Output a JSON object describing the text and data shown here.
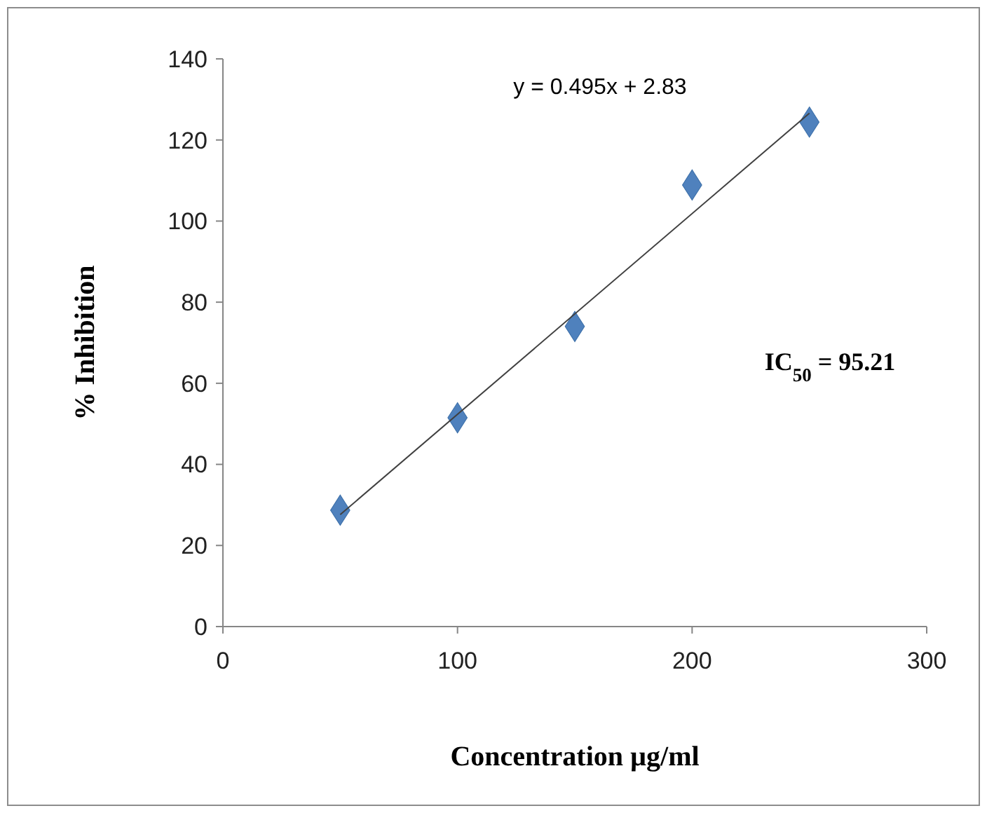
{
  "chart_data": {
    "type": "scatter",
    "xlabel": "Concentration µg/ml",
    "ylabel": "% Inhibition",
    "x": [
      50,
      100,
      150,
      200,
      250
    ],
    "series": [
      {
        "color": "#4f81bd",
        "marker": "diamond",
        "values": [
          28.7,
          51.5,
          74,
          108.9,
          124.4
        ]
      },
      {
        "type": "line",
        "color": "#404040",
        "marker": "none",
        "line_style": "solid",
        "x": [
          50,
          250
        ],
        "values": [
          27.6,
          126.6
        ]
      }
    ],
    "xlim": [
      0,
      300
    ],
    "xticks": [
      0,
      100,
      200,
      300
    ],
    "ylim": [
      0,
      140
    ],
    "yticks": [
      0,
      20,
      40,
      60,
      80,
      100,
      120,
      140
    ],
    "grid": false,
    "annotations": [
      "y = 0.495x + 2.83",
      "IC$_{50}$ = 95.21"
    ]
  }
}
